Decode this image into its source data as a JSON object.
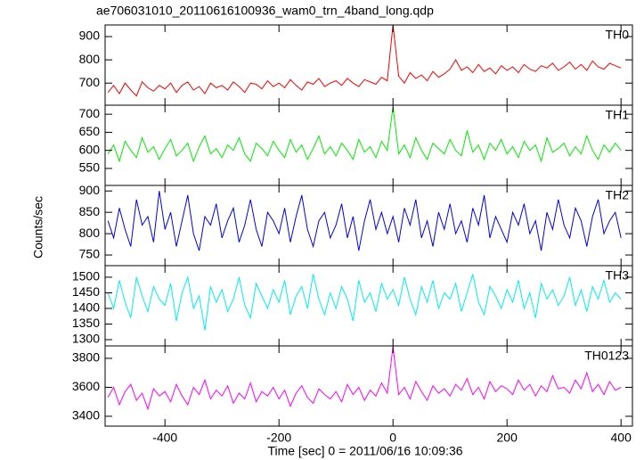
{
  "chart_data": {
    "type": "line",
    "title": "ae706031010_20110616100936_wam0_trn_4band_long.qdp",
    "xlabel": "Time [sec] 0 = 2011/06/16 10:09:36",
    "ylabel": "Counts/sec",
    "xlim": [
      -505,
      420
    ],
    "xticks": [
      -400,
      -200,
      0,
      200,
      400
    ],
    "x": [
      -500,
      -490,
      -480,
      -470,
      -460,
      -450,
      -440,
      -430,
      -420,
      -410,
      -400,
      -390,
      -380,
      -370,
      -360,
      -350,
      -340,
      -330,
      -320,
      -310,
      -300,
      -290,
      -280,
      -270,
      -260,
      -250,
      -240,
      -230,
      -220,
      -210,
      -200,
      -190,
      -180,
      -170,
      -160,
      -150,
      -140,
      -130,
      -120,
      -110,
      -100,
      -90,
      -80,
      -70,
      -60,
      -50,
      -40,
      -30,
      -20,
      -10,
      0,
      10,
      20,
      30,
      40,
      50,
      60,
      70,
      80,
      90,
      100,
      110,
      120,
      130,
      140,
      150,
      160,
      170,
      180,
      190,
      200,
      210,
      220,
      230,
      240,
      250,
      260,
      270,
      280,
      290,
      300,
      310,
      320,
      330,
      340,
      350,
      360,
      370,
      380,
      390,
      400
    ],
    "series": [
      {
        "name": "TH0",
        "color": "#ff0000",
        "ylim": [
          605,
          950
        ],
        "yticks": [
          700,
          800,
          900
        ],
        "values": [
          660,
          690,
          655,
          700,
          670,
          645,
          705,
          680,
          665,
          690,
          675,
          700,
          660,
          690,
          705,
          670,
          685,
          655,
          700,
          680,
          690,
          670,
          705,
          685,
          660,
          700,
          695,
          675,
          710,
          685,
          700,
          680,
          715,
          690,
          670,
          705,
          695,
          720,
          685,
          700,
          710,
          690,
          720,
          700,
          685,
          715,
          705,
          695,
          725,
          710,
          950,
          730,
          700,
          745,
          720,
          735,
          710,
          750,
          725,
          740,
          760,
          800,
          755,
          770,
          745,
          780,
          750,
          765,
          740,
          775,
          755,
          770,
          745,
          780,
          760,
          750,
          775,
          765,
          785,
          755,
          770,
          790,
          760,
          780,
          755,
          795,
          770,
          760,
          785,
          775,
          765
        ]
      },
      {
        "name": "TH1",
        "color": "#00ee00",
        "ylim": [
          503,
          725
        ],
        "yticks": [
          550,
          600,
          650,
          700
        ],
        "values": [
          590,
          615,
          570,
          625,
          600,
          580,
          635,
          595,
          610,
          575,
          605,
          630,
          585,
          600,
          620,
          570,
          610,
          640,
          590,
          605,
          580,
          615,
          600,
          635,
          590,
          570,
          620,
          605,
          585,
          625,
          600,
          580,
          630,
          595,
          615,
          575,
          605,
          640,
          590,
          610,
          585,
          620,
          600,
          575,
          630,
          595,
          610,
          580,
          625,
          600,
          720,
          590,
          615,
          580,
          635,
          600,
          575,
          620,
          605,
          590,
          630,
          600,
          585,
          655,
          595,
          615,
          575,
          620,
          600,
          630,
          590,
          610,
          580,
          625,
          600,
          615,
          570,
          635,
          595,
          605,
          620,
          585,
          610,
          590,
          640,
          600,
          575,
          615,
          595,
          620,
          600
        ]
      },
      {
        "name": "TH2",
        "color": "#0000ee",
        "ylim": [
          725,
          913
        ],
        "yticks": [
          750,
          800,
          850,
          900
        ],
        "values": [
          830,
          790,
          860,
          810,
          770,
          880,
          820,
          840,
          780,
          900,
          810,
          850,
          770,
          830,
          890,
          800,
          760,
          840,
          820,
          870,
          790,
          830,
          860,
          780,
          820,
          880,
          810,
          770,
          850,
          830,
          800,
          860,
          780,
          840,
          890,
          810,
          770,
          830,
          850,
          790,
          820,
          870,
          790,
          840,
          760,
          830,
          880,
          810,
          850,
          800,
          840,
          780,
          860,
          820,
          880,
          790,
          830,
          770,
          850,
          810,
          870,
          800,
          830,
          780,
          860,
          820,
          890,
          790,
          840,
          810,
          780,
          850,
          820,
          870,
          800,
          830,
          760,
          850,
          810,
          880,
          820,
          790,
          860,
          830,
          770,
          840,
          880,
          800,
          830,
          850,
          790
        ]
      },
      {
        "name": "TH3",
        "color": "#00eeee",
        "ylim": [
          1280,
          1537
        ],
        "yticks": [
          1300,
          1350,
          1400,
          1450,
          1500
        ],
        "values": [
          1450,
          1400,
          1490,
          1420,
          1370,
          1500,
          1440,
          1390,
          1470,
          1430,
          1410,
          1480,
          1360,
          1450,
          1500,
          1400,
          1440,
          1330,
          1470,
          1420,
          1460,
          1390,
          1430,
          1500,
          1410,
          1370,
          1480,
          1440,
          1400,
          1460,
          1420,
          1490,
          1380,
          1440,
          1470,
          1400,
          1510,
          1430,
          1380,
          1450,
          1400,
          1470,
          1430,
          1360,
          1490,
          1420,
          1450,
          1390,
          1480,
          1430,
          1460,
          1410,
          1500,
          1430,
          1380,
          1470,
          1420,
          1490,
          1400,
          1450,
          1430,
          1480,
          1390,
          1450,
          1510,
          1420,
          1380,
          1470,
          1440,
          1400,
          1460,
          1420,
          1490,
          1400,
          1450,
          1370,
          1480,
          1430,
          1460,
          1410,
          1440,
          1500,
          1410,
          1460,
          1390,
          1470,
          1430,
          1490,
          1420,
          1450,
          1430
        ]
      },
      {
        "name": "TH0123",
        "color": "#ff00ff",
        "ylim": [
          3332,
          3886
        ],
        "yticks": [
          3400,
          3600,
          3800
        ],
        "values": [
          3530,
          3600,
          3480,
          3570,
          3620,
          3510,
          3560,
          3450,
          3590,
          3540,
          3570,
          3500,
          3620,
          3540,
          3480,
          3600,
          3550,
          3650,
          3520,
          3580,
          3540,
          3610,
          3490,
          3560,
          3520,
          3630,
          3500,
          3570,
          3540,
          3600,
          3520,
          3580,
          3470,
          3560,
          3610,
          3530,
          3490,
          3590,
          3550,
          3520,
          3570,
          3500,
          3620,
          3550,
          3600,
          3510,
          3580,
          3540,
          3630,
          3560,
          3880,
          3550,
          3600,
          3520,
          3640,
          3570,
          3510,
          3610,
          3560,
          3590,
          3540,
          3620,
          3580,
          3660,
          3550,
          3600,
          3520,
          3640,
          3570,
          3610,
          3590,
          3550,
          3650,
          3580,
          3620,
          3540,
          3610,
          3570,
          3680,
          3590,
          3600,
          3560,
          3650,
          3590,
          3700,
          3570,
          3620,
          3550,
          3640,
          3580,
          3600
        ]
      }
    ]
  }
}
